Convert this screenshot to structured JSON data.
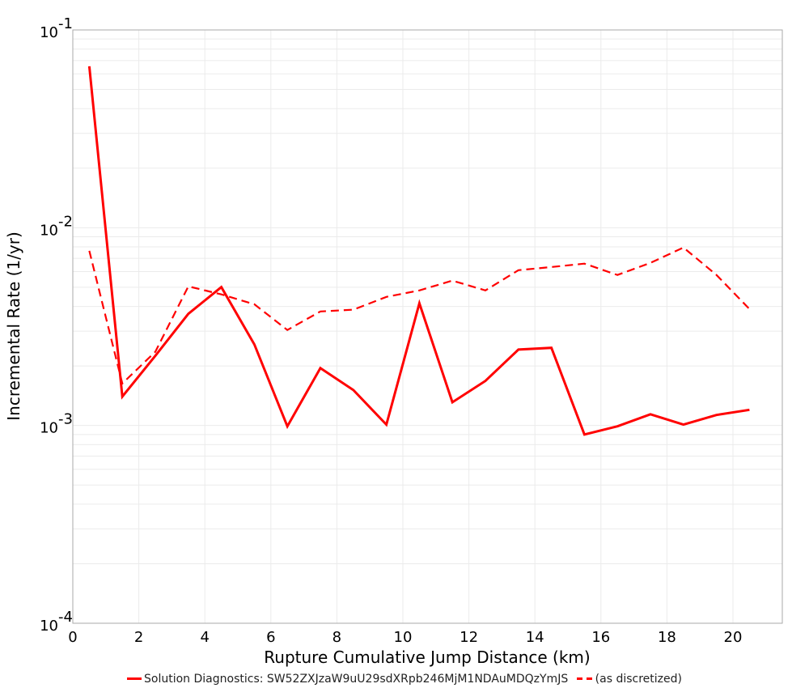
{
  "chart_data": {
    "type": "line",
    "title": "",
    "xlabel": "Rupture Cumulative Jump Distance (km)",
    "ylabel": "Incremental Rate (1/yr)",
    "xlim": [
      0,
      21.5
    ],
    "ylim": [
      0.0001,
      0.1
    ],
    "yscale": "log",
    "grid": true,
    "legend_position": "bottom",
    "x_ticks": [
      "0",
      "2",
      "4",
      "6",
      "8",
      "10",
      "12",
      "14",
      "16",
      "18",
      "20"
    ],
    "y_ticks": [
      {
        "base": "10",
        "exp": "-1"
      },
      {
        "base": "10",
        "exp": "-2"
      },
      {
        "base": "10",
        "exp": "-3"
      },
      {
        "base": "10",
        "exp": "-4"
      }
    ],
    "x": [
      0.5,
      1.5,
      2.5,
      3.5,
      4.5,
      5.5,
      6.5,
      7.5,
      8.5,
      9.5,
      10.5,
      11.5,
      12.5,
      13.5,
      14.5,
      15.5,
      16.5,
      17.5,
      18.5,
      19.5,
      20.5
    ],
    "series": [
      {
        "name": "Solution Diagnostics: SW52ZXJzaW9uU29sdXRpb246MjM1NDAuMDQzYmJS",
        "style": "solid",
        "color": "#ff0000",
        "values": [
          0.0655,
          0.0014,
          0.00225,
          0.00367,
          0.00501,
          0.00257,
          0.00099,
          0.00195,
          0.00151,
          0.00101,
          0.00415,
          0.00131,
          0.00168,
          0.00242,
          0.00247,
          0.0009,
          0.00099,
          0.00114,
          0.00101,
          0.00113,
          0.0012
        ]
      },
      {
        "name": "(as discretized)",
        "style": "dashed",
        "color": "#ff0000",
        "values": [
          0.00764,
          0.00163,
          0.00236,
          0.00505,
          0.0046,
          0.0041,
          0.00304,
          0.00377,
          0.00385,
          0.00447,
          0.00482,
          0.0054,
          0.00482,
          0.0061,
          0.00633,
          0.00658,
          0.00577,
          0.00664,
          0.00794,
          0.00577,
          0.00388
        ]
      }
    ]
  },
  "legend": {
    "items": [
      {
        "label": "Solution Diagnostics: SW52ZXJzaW9uU29sdXRpb246MjM1NDAuMDQzYmJS",
        "style": "solid"
      },
      {
        "label": "(as discretized)",
        "style": "dashed"
      }
    ]
  },
  "colors": {
    "series": "#ff0000",
    "grid": "#ebebeb",
    "axis": "#aaaaaa"
  }
}
